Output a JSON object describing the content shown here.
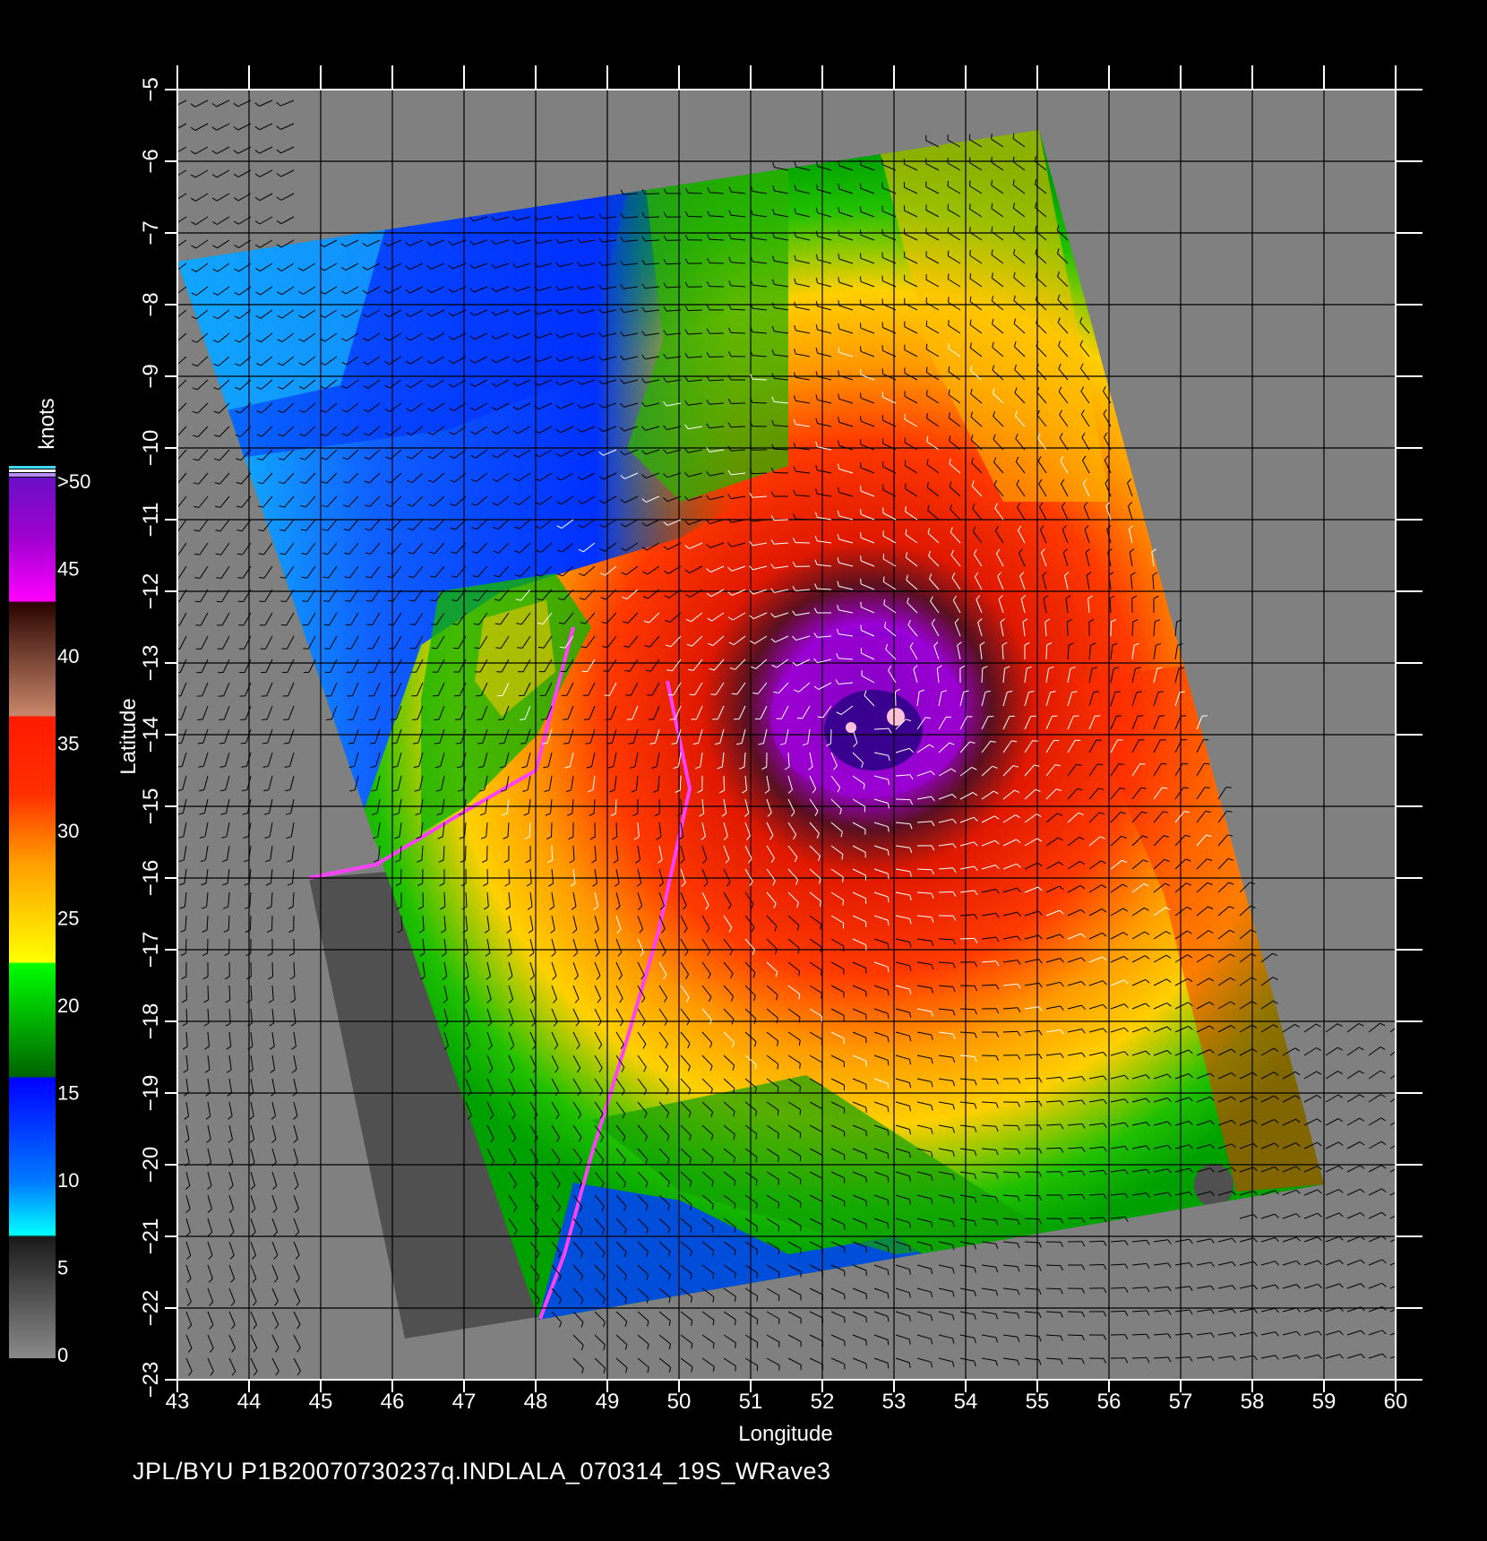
{
  "map": {
    "x_axis": {
      "title": "Longitude",
      "ticks": [
        "43",
        "44",
        "45",
        "46",
        "47",
        "48",
        "49",
        "50",
        "51",
        "52",
        "53",
        "54",
        "55",
        "56",
        "57",
        "58",
        "59",
        "60"
      ]
    },
    "y_axis": {
      "title": "Latitude",
      "ticks": [
        "−5",
        "−6",
        "−7",
        "−8",
        "−9",
        "−10",
        "−11",
        "−12",
        "−13",
        "−14",
        "−15",
        "−16",
        "−17",
        "−18",
        "−19",
        "−20",
        "−21",
        "−22",
        "−23"
      ]
    },
    "ocean_no_data_color": "#808080",
    "land_color": "#505050"
  },
  "colorbar": {
    "title": "knots",
    "labels": [
      ">50",
      "45",
      "40",
      "35",
      "30",
      "25",
      "20",
      "15",
      "10",
      "5",
      "0"
    ],
    "top_swatches": [
      "#3fd9ff",
      "#ffffff",
      "#b88cff"
    ],
    "stops": [
      {
        "color": "#6a0fc8"
      },
      {
        "color": "#b000d8"
      },
      {
        "color": "#ff00ff"
      },
      {
        "color": "#3a0a00"
      },
      {
        "color": "#c78060"
      },
      {
        "color": "#ff2000"
      },
      {
        "color": "#ff6a00"
      },
      {
        "color": "#ffa800"
      },
      {
        "color": "#ffff00"
      },
      {
        "color": "#00ff00"
      },
      {
        "color": "#007000"
      },
      {
        "color": "#0000ff"
      },
      {
        "color": "#00a0ff"
      },
      {
        "color": "#00ffff"
      },
      {
        "color": "#202020"
      },
      {
        "color": "#808080"
      }
    ]
  },
  "footer": {
    "text": "JPL/BYU  P1B20070730237q.INDLALA_070314_19S_WRave3"
  }
}
